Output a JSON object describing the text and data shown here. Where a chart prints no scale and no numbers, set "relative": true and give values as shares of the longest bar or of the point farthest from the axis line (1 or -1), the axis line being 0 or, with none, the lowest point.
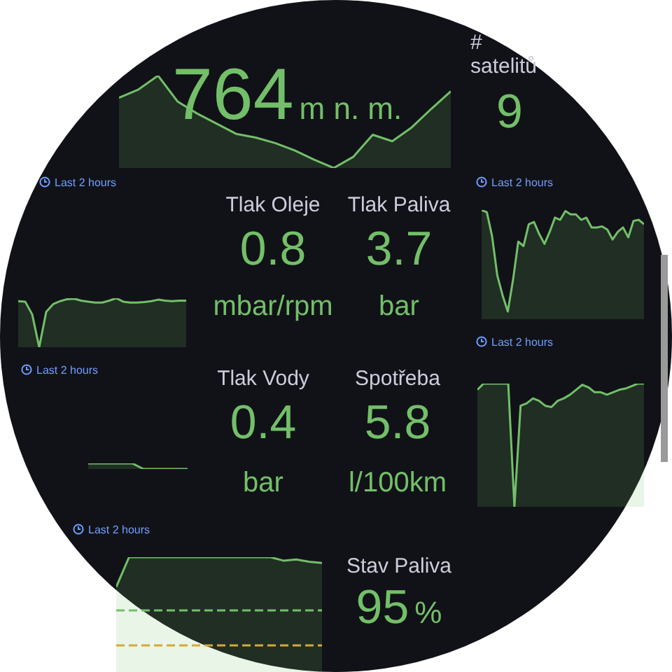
{
  "chart_data": [
    {
      "type": "area",
      "relative": true,
      "marker": "none",
      "annotations": [
        "764",
        "m n. m."
      ],
      "categories": [
        null,
        null,
        null,
        null,
        null,
        null,
        null,
        null,
        null,
        null,
        null,
        null,
        null,
        null,
        null,
        null,
        null,
        null
      ],
      "series": [
        {
          "color": "#73bf69",
          "values": [
            0.76,
            0.85,
            1,
            0.72,
            0.59,
            0.48,
            0.37,
            0.33,
            0.27,
            0.19,
            0.09,
            0,
            0.12,
            0.36,
            0.29,
            0.44,
            0.64,
            0.83
          ]
        }
      ]
    },
    {
      "type": "other",
      "title": "# satelitů",
      "annotations": [
        "9"
      ]
    },
    {
      "type": "area",
      "relative": true,
      "marker": "none",
      "subtitle": "Last 2 hours",
      "categories": [
        null,
        null,
        null,
        null,
        null,
        null,
        null,
        null,
        null,
        null,
        null,
        null,
        null,
        null,
        null,
        null,
        null,
        null,
        null,
        null,
        null,
        null,
        null,
        null,
        null
      ],
      "series": [
        {
          "color": "#73bf69",
          "values": [
            0.94,
            0.93,
            0.67,
            0,
            0.72,
            0.88,
            0.94,
            0.98,
            0.99,
            0.95,
            0.93,
            0.91,
            0.91,
            0.95,
            1,
            0.93,
            0.91,
            0.91,
            0.92,
            0.94,
            0.97,
            0.95,
            0.94,
            0.95,
            0.95
          ]
        }
      ]
    },
    {
      "type": "other",
      "title": "Tlak Oleje",
      "annotations": [
        "0.8",
        "mbar/rpm"
      ]
    },
    {
      "type": "other",
      "title": "Tlak Paliva",
      "annotations": [
        "3.7",
        "bar"
      ]
    },
    {
      "type": "area",
      "relative": true,
      "marker": "none",
      "subtitle": "Last 2 hours",
      "categories": [
        null,
        null,
        null,
        null,
        null,
        null,
        null,
        null,
        null,
        null,
        null,
        null,
        null,
        null,
        null,
        null,
        null,
        null,
        null,
        null,
        null,
        null,
        null,
        null,
        null,
        null,
        null,
        null,
        null,
        null,
        null,
        null
      ],
      "series": [
        {
          "color": "#73bf69",
          "values": [
            1,
            0.98,
            0.76,
            0.4,
            0.22,
            0.07,
            0.36,
            0.71,
            0.67,
            0.87,
            0.89,
            0.78,
            0.69,
            0.8,
            0.93,
            0.91,
            0.99,
            0.96,
            0.96,
            0.91,
            0.93,
            0.84,
            0.84,
            0.85,
            0.82,
            0.73,
            0.8,
            0.84,
            0.75,
            0.9,
            0.91,
            0.87
          ]
        }
      ]
    },
    {
      "type": "area",
      "relative": true,
      "marker": "none",
      "subtitle": "Last 2 hours",
      "categories": [
        null,
        null,
        null,
        null,
        null,
        null,
        null,
        null,
        null,
        null
      ],
      "series": [
        {
          "color": "#73bf69",
          "values": [
            1,
            1,
            1,
            1,
            1,
            0,
            0,
            0,
            0,
            0
          ]
        }
      ]
    },
    {
      "type": "other",
      "title": "Tlak Vody",
      "annotations": [
        "0.4",
        "bar"
      ]
    },
    {
      "type": "other",
      "title": "Spotřeba",
      "annotations": [
        "5.8",
        "l/100km"
      ]
    },
    {
      "type": "area",
      "relative": true,
      "marker": "none",
      "subtitle": "Last 2 hours",
      "categories": [
        null,
        null,
        null,
        null,
        null,
        null,
        null,
        null,
        null,
        null,
        null,
        null,
        null,
        null,
        null,
        null,
        null,
        null,
        null,
        null,
        null,
        null,
        null,
        null,
        null,
        null,
        null,
        null
      ],
      "series": [
        {
          "color": "#73bf69",
          "values": [
            0.95,
            1,
            1,
            1,
            1,
            1,
            0,
            0.82,
            0.84,
            0.88,
            0.86,
            0.82,
            0.81,
            0.86,
            0.88,
            0.91,
            0.95,
            0.99,
            0.97,
            0.93,
            0.93,
            0.91,
            0.93,
            0.95,
            0.96,
            0.98,
            1,
            1
          ]
        }
      ]
    },
    {
      "type": "area",
      "relative": true,
      "marker": "none",
      "subtitle": "Last 2 hours",
      "categories": [
        null,
        null,
        null,
        null,
        null,
        null,
        null,
        null,
        null,
        null,
        null,
        null,
        null,
        null,
        null,
        null,
        null
      ],
      "series": [
        {
          "color": "#73bf69",
          "values": [
            0.74,
            1,
            1,
            1,
            1,
            1,
            1,
            1,
            1,
            1,
            1,
            1,
            1,
            0.97,
            0.98,
            0.96,
            0.95
          ]
        }
      ],
      "ref_lines": [
        {
          "axis": "y",
          "value": 0.54,
          "color": "#73bf69",
          "line_style": "dashed"
        },
        {
          "axis": "y",
          "value": 0.24,
          "color": "#d6a83a",
          "line_style": "dashed"
        }
      ]
    },
    {
      "type": "other",
      "title": "Stav Paliva",
      "annotations": [
        "95",
        "%"
      ]
    }
  ]
}
